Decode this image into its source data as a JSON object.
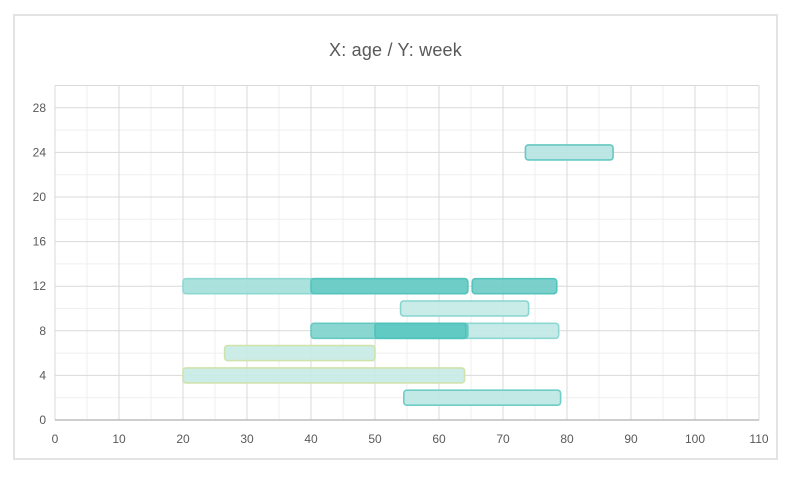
{
  "title": "X: age / Y: week",
  "colors": {
    "title_text": "#595959",
    "axis_text": "#595959",
    "grid_minor": "#efefef",
    "grid_major": "#d9d9d9",
    "axis_line": "#bdbdbd",
    "card_border": "#e3e3e3",
    "teal_accent": "#5ec9c2",
    "green_stroke": "#cfe3ad"
  },
  "chart_data": {
    "type": "bar",
    "subtype": "horizontal-range-bars",
    "title": "X: age / Y: week",
    "xlabel": "age",
    "ylabel": "week",
    "xlim": [
      0,
      110
    ],
    "ylim": [
      0,
      30
    ],
    "x_ticks": [
      0,
      10,
      20,
      30,
      40,
      50,
      60,
      70,
      80,
      90,
      100,
      110
    ],
    "y_ticks": [
      0,
      4,
      8,
      12,
      16,
      20,
      24,
      28
    ],
    "x_minor_step": 5,
    "y_minor_step": 2,
    "grid": true,
    "legend": false,
    "bars": [
      {
        "week": 4,
        "start": 20,
        "end": 64,
        "fill": "#c9ebe7",
        "stroke": "#cfe3ad"
      },
      {
        "week": 6,
        "start": 26.5,
        "end": 50,
        "fill": "#c9ebe7",
        "stroke": "#cfe3ad"
      },
      {
        "week": 2,
        "start": 54.5,
        "end": 79,
        "fill": "#bfe8e4",
        "stroke": "#6fcdc7"
      },
      {
        "week": 10,
        "start": 54,
        "end": 74,
        "fill": "#c6ebe8",
        "stroke": "#87d5cf"
      },
      {
        "week": 24,
        "start": 73.5,
        "end": 87.2,
        "fill": "#b7e5e1",
        "stroke": "#66c9c2"
      },
      {
        "week": 8,
        "start": 54.5,
        "end": 78.7,
        "fill": "#c3e9e6",
        "stroke": "#8ed8d2"
      },
      {
        "week": 8,
        "start": 40,
        "end": 64.5,
        "fill": "#84d4ce",
        "stroke": "#66c9c2"
      },
      {
        "week": 8,
        "start": 50,
        "end": 64.2,
        "fill": "#5ec9c2",
        "stroke": "#4fc2bb"
      },
      {
        "week": 12,
        "start": 20,
        "end": 64.5,
        "fill": "#a6e0dc",
        "stroke": "#8ed8d2"
      },
      {
        "week": 12,
        "start": 40,
        "end": 64.5,
        "fill": "#6ccbc5",
        "stroke": "#55c4bd"
      },
      {
        "week": 12,
        "start": 65.2,
        "end": 78.4,
        "fill": "#74cec8",
        "stroke": "#55c4bd"
      }
    ]
  }
}
